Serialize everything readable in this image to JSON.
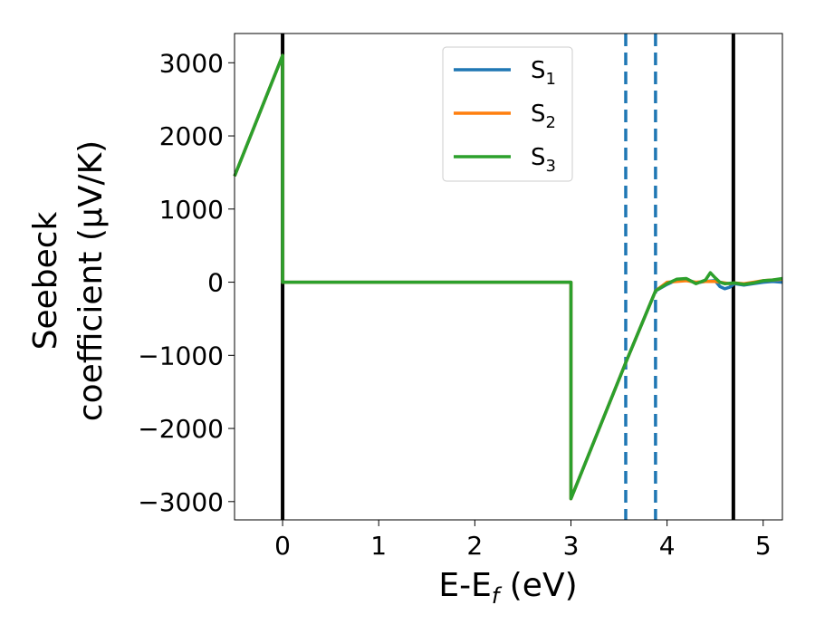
{
  "chart_data": {
    "type": "line",
    "xlabel_main": "E-E",
    "xlabel_sub": "f",
    "xlabel_unit": " (eV)",
    "ylabel_line1": "Seebeck",
    "ylabel_line2": "coefficient  (μV/K)",
    "xlim": [
      -0.5,
      5.2
    ],
    "ylim": [
      -3250,
      3400
    ],
    "x_ticks": [
      0,
      1,
      2,
      3,
      4,
      5
    ],
    "x_tick_labels": [
      "0",
      "1",
      "2",
      "3",
      "4",
      "5"
    ],
    "y_ticks": [
      -3000,
      -2000,
      -1000,
      0,
      1000,
      2000,
      3000
    ],
    "y_tick_labels": [
      "−3000",
      "−2000",
      "−1000",
      "0",
      "1000",
      "2000",
      "3000"
    ],
    "grid": false,
    "legend_position": "top-center",
    "vlines": [
      {
        "x": 0.0,
        "style": "solid",
        "color": "#000000"
      },
      {
        "x": 4.69,
        "style": "solid",
        "color": "#000000"
      },
      {
        "x": 3.57,
        "style": "dashed",
        "color": "#1f77b4"
      },
      {
        "x": 3.88,
        "style": "dashed",
        "color": "#1f77b4"
      }
    ],
    "series": [
      {
        "name": "S",
        "sub": "1",
        "color": "#1f77b4",
        "x": [
          -0.5,
          0.0,
          0.0,
          3.0,
          3.0,
          3.57,
          3.88,
          4.0,
          4.1,
          4.2,
          4.3,
          4.4,
          4.5,
          4.55,
          4.6,
          4.65,
          4.7,
          4.8,
          4.9,
          5.0,
          5.1,
          5.2
        ],
        "y": [
          1450,
          3100,
          0,
          0,
          -2960,
          -1100,
          -120,
          -30,
          30,
          40,
          -10,
          10,
          20,
          -60,
          -90,
          -70,
          -20,
          -40,
          -20,
          0,
          10,
          0
        ]
      },
      {
        "name": "S",
        "sub": "2",
        "color": "#ff7f0e",
        "x": [
          -0.5,
          0.0,
          0.0,
          3.0,
          3.0,
          3.57,
          3.88,
          4.0,
          4.1,
          4.2,
          4.3,
          4.4,
          4.5,
          4.55,
          4.6,
          4.65,
          4.7,
          4.8,
          4.9,
          5.0,
          5.1,
          5.2
        ],
        "y": [
          1450,
          3100,
          0,
          0,
          -2960,
          -1100,
          -120,
          0,
          10,
          20,
          0,
          10,
          10,
          0,
          -10,
          -20,
          -10,
          -20,
          0,
          20,
          30,
          40
        ]
      },
      {
        "name": "S",
        "sub": "3",
        "color": "#2ca02c",
        "x": [
          -0.5,
          0.0,
          0.0,
          3.0,
          3.0,
          3.57,
          3.88,
          4.0,
          4.1,
          4.2,
          4.3,
          4.4,
          4.45,
          4.5,
          4.55,
          4.6,
          4.7,
          4.8,
          4.9,
          5.0,
          5.1,
          5.2
        ],
        "y": [
          1450,
          3100,
          0,
          0,
          -2960,
          -1100,
          -120,
          -20,
          40,
          50,
          -20,
          30,
          130,
          60,
          0,
          -20,
          -10,
          -30,
          -10,
          20,
          30,
          50
        ]
      }
    ]
  }
}
